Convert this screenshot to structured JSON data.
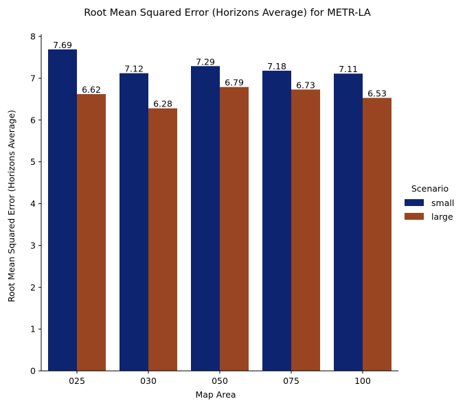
{
  "chart_data": {
    "type": "bar",
    "title": "Root Mean Squared Error (Horizons Average) for METR-LA",
    "xlabel": "Map Area",
    "ylabel": "Root Mean Squared Error (Horizons Average)",
    "categories": [
      "025",
      "030",
      "050",
      "075",
      "100"
    ],
    "series": [
      {
        "name": "small",
        "values": [
          7.69,
          7.12,
          7.29,
          7.18,
          7.11
        ],
        "labels": [
          "7.69",
          "7.12",
          "7.29",
          "7.18",
          "7.11"
        ],
        "color": "#0d2470"
      },
      {
        "name": "large",
        "values": [
          6.62,
          6.28,
          6.79,
          6.73,
          6.53
        ],
        "labels": [
          "6.62",
          "6.28",
          "6.79",
          "6.73",
          "6.53"
        ],
        "color": "#9a4521"
      }
    ],
    "ylim": [
      0,
      8.05
    ],
    "yticks": [
      0,
      1,
      2,
      3,
      4,
      5,
      6,
      7,
      8
    ],
    "ytick_labels": [
      "0",
      "1",
      "2",
      "3",
      "4",
      "5",
      "6",
      "7",
      "8"
    ],
    "grid": false,
    "legend": {
      "title": "Scenario",
      "placement": "right"
    }
  }
}
